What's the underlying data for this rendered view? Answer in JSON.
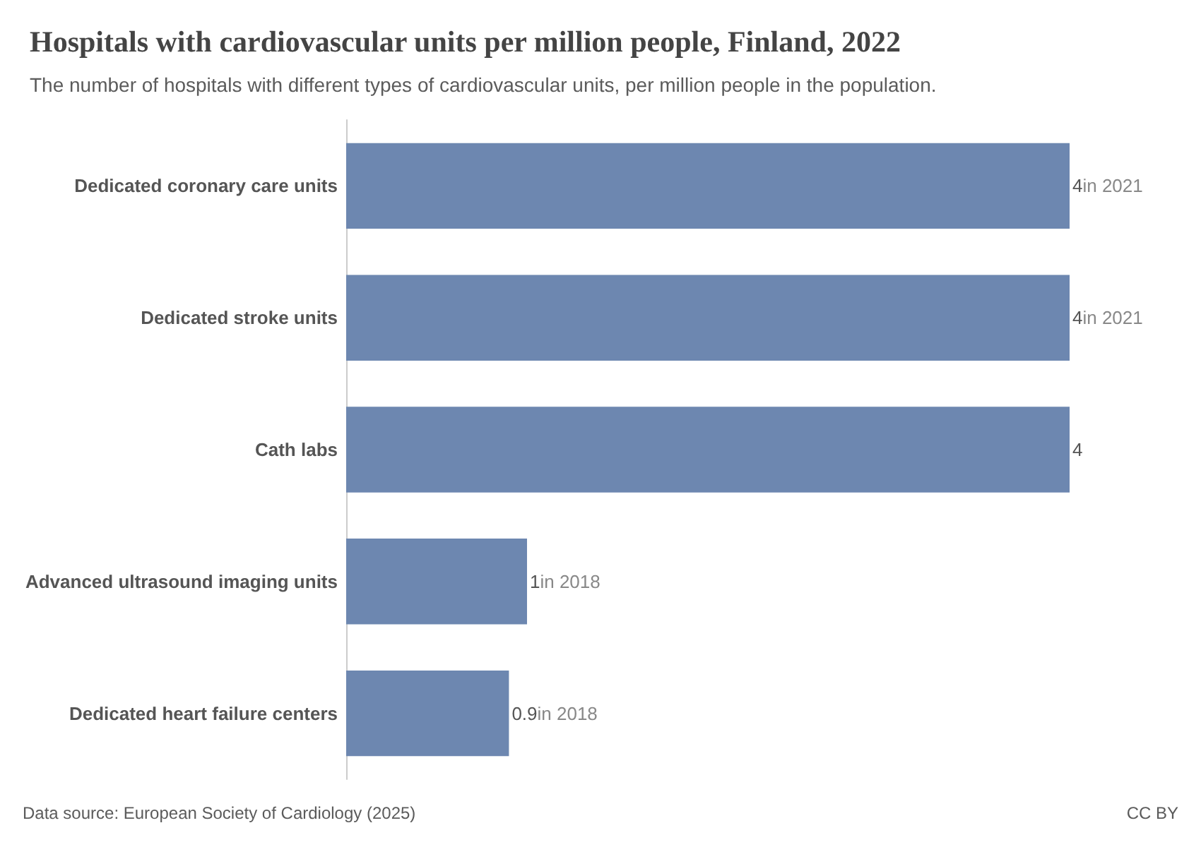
{
  "chart_data": {
    "type": "bar",
    "orientation": "horizontal",
    "tick_labels": "y",
    "title": "Hospitals with cardiovascular units per million people, Finland, 2022",
    "subtitle": "The number of hospitals with different types of cardiovascular units, per million people in the population.",
    "categories": [
      "Dedicated coronary care units",
      "Dedicated stroke units",
      "Cath labs",
      "Advanced ultrasound imaging units",
      "Dedicated heart failure centers"
    ],
    "values": [
      4,
      4,
      4,
      1,
      0.9
    ],
    "value_labels": [
      "4in 2021",
      "4in 2021",
      "4",
      "1in 2018",
      "0.9in 2018"
    ],
    "color": "#6d87b0",
    "annotations": [
      "Data source: European Society of Cardiology (2025)",
      "CC BY"
    ]
  }
}
